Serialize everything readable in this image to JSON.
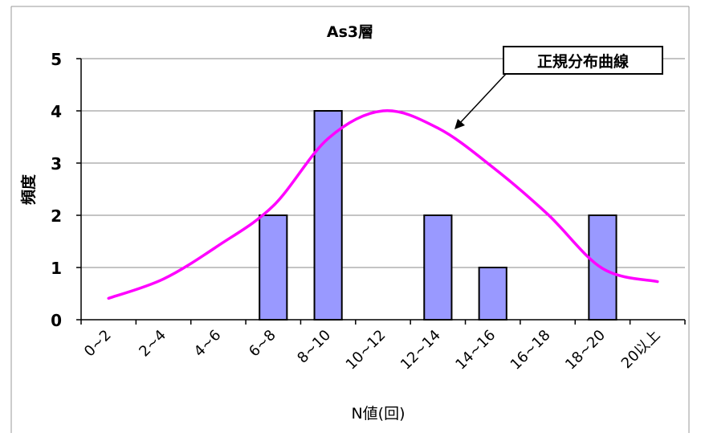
{
  "chart_data": {
    "type": "bar",
    "title": "As3層",
    "xlabel": "N値(回)",
    "ylabel": "頻度",
    "categories": [
      "0~2",
      "2~4",
      "4~6",
      "6~8",
      "8~10",
      "10~12",
      "12~14",
      "14~16",
      "16~18",
      "18~20",
      "20以上"
    ],
    "series": [
      {
        "values": [
          0,
          0,
          0,
          2,
          4,
          0,
          2,
          1,
          0,
          2,
          0
        ],
        "color": "#9999ff"
      }
    ],
    "overlay_curve": {
      "name": "正規分布曲線",
      "color": "#ff00ff",
      "values": [
        0.41,
        0.78,
        1.42,
        2.18,
        3.47,
        4.0,
        3.67,
        2.92,
        2.02,
        0.98,
        0.73
      ]
    },
    "ylim": [
      0,
      5
    ],
    "yticks": [
      0,
      1,
      2,
      3,
      4,
      5
    ],
    "grid": true,
    "legend": "none",
    "annotation": {
      "text": "正規分布曲線",
      "target": "overlay_curve"
    }
  }
}
